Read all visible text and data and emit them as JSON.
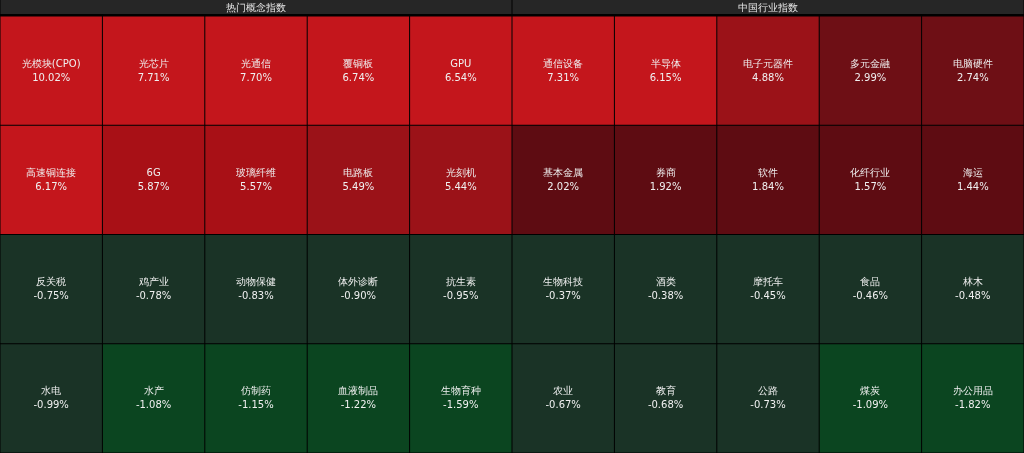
{
  "chart_data": [
    {
      "type": "other",
      "title": "热门概念指数",
      "categories": [
        "光模块(CPO)",
        "光芯片",
        "光通信",
        "覆铜板",
        "GPU",
        "高速铜连接",
        "6G",
        "玻璃纤维",
        "电路板",
        "光刻机",
        "反关税",
        "鸡产业",
        "动物保健",
        "体外诊断",
        "抗生素",
        "水电",
        "水产",
        "仿制药",
        "血液制品",
        "生物育种"
      ],
      "values": [
        10.02,
        7.71,
        7.7,
        6.74,
        6.54,
        6.17,
        5.87,
        5.57,
        5.49,
        5.44,
        -0.75,
        -0.78,
        -0.83,
        -0.9,
        -0.95,
        -0.99,
        -1.08,
        -1.15,
        -1.22,
        -1.59
      ],
      "value_labels": [
        "10.02%",
        "7.71%",
        "7.70%",
        "6.74%",
        "6.54%",
        "6.17%",
        "5.87%",
        "5.57%",
        "5.49%",
        "5.44%",
        "-0.75%",
        "-0.78%",
        "-0.83%",
        "-0.90%",
        "-0.95%",
        "-0.99%",
        "-1.08%",
        "-1.15%",
        "-1.22%",
        "-1.59%"
      ]
    },
    {
      "type": "other",
      "title": "中国行业指数",
      "categories": [
        "通信设备",
        "半导体",
        "电子元器件",
        "多元金融",
        "电脑硬件",
        "基本金属",
        "券商",
        "软件",
        "化纤行业",
        "海运",
        "生物科技",
        "酒类",
        "摩托车",
        "食品",
        "林木",
        "农业",
        "教育",
        "公路",
        "煤炭",
        "办公用品"
      ],
      "values": [
        7.31,
        6.15,
        4.88,
        2.99,
        2.74,
        2.02,
        1.92,
        1.84,
        1.57,
        1.44,
        -0.37,
        -0.38,
        -0.45,
        -0.46,
        -0.48,
        -0.67,
        -0.68,
        -0.73,
        -1.09,
        -1.82
      ],
      "value_labels": [
        "7.31%",
        "6.15%",
        "4.88%",
        "2.99%",
        "2.74%",
        "2.02%",
        "1.92%",
        "1.84%",
        "1.57%",
        "1.44%",
        "-0.37%",
        "-0.38%",
        "-0.45%",
        "-0.46%",
        "-0.48%",
        "-0.67%",
        "-0.68%",
        "-0.73%",
        "-1.09%",
        "-1.82%"
      ]
    }
  ]
}
